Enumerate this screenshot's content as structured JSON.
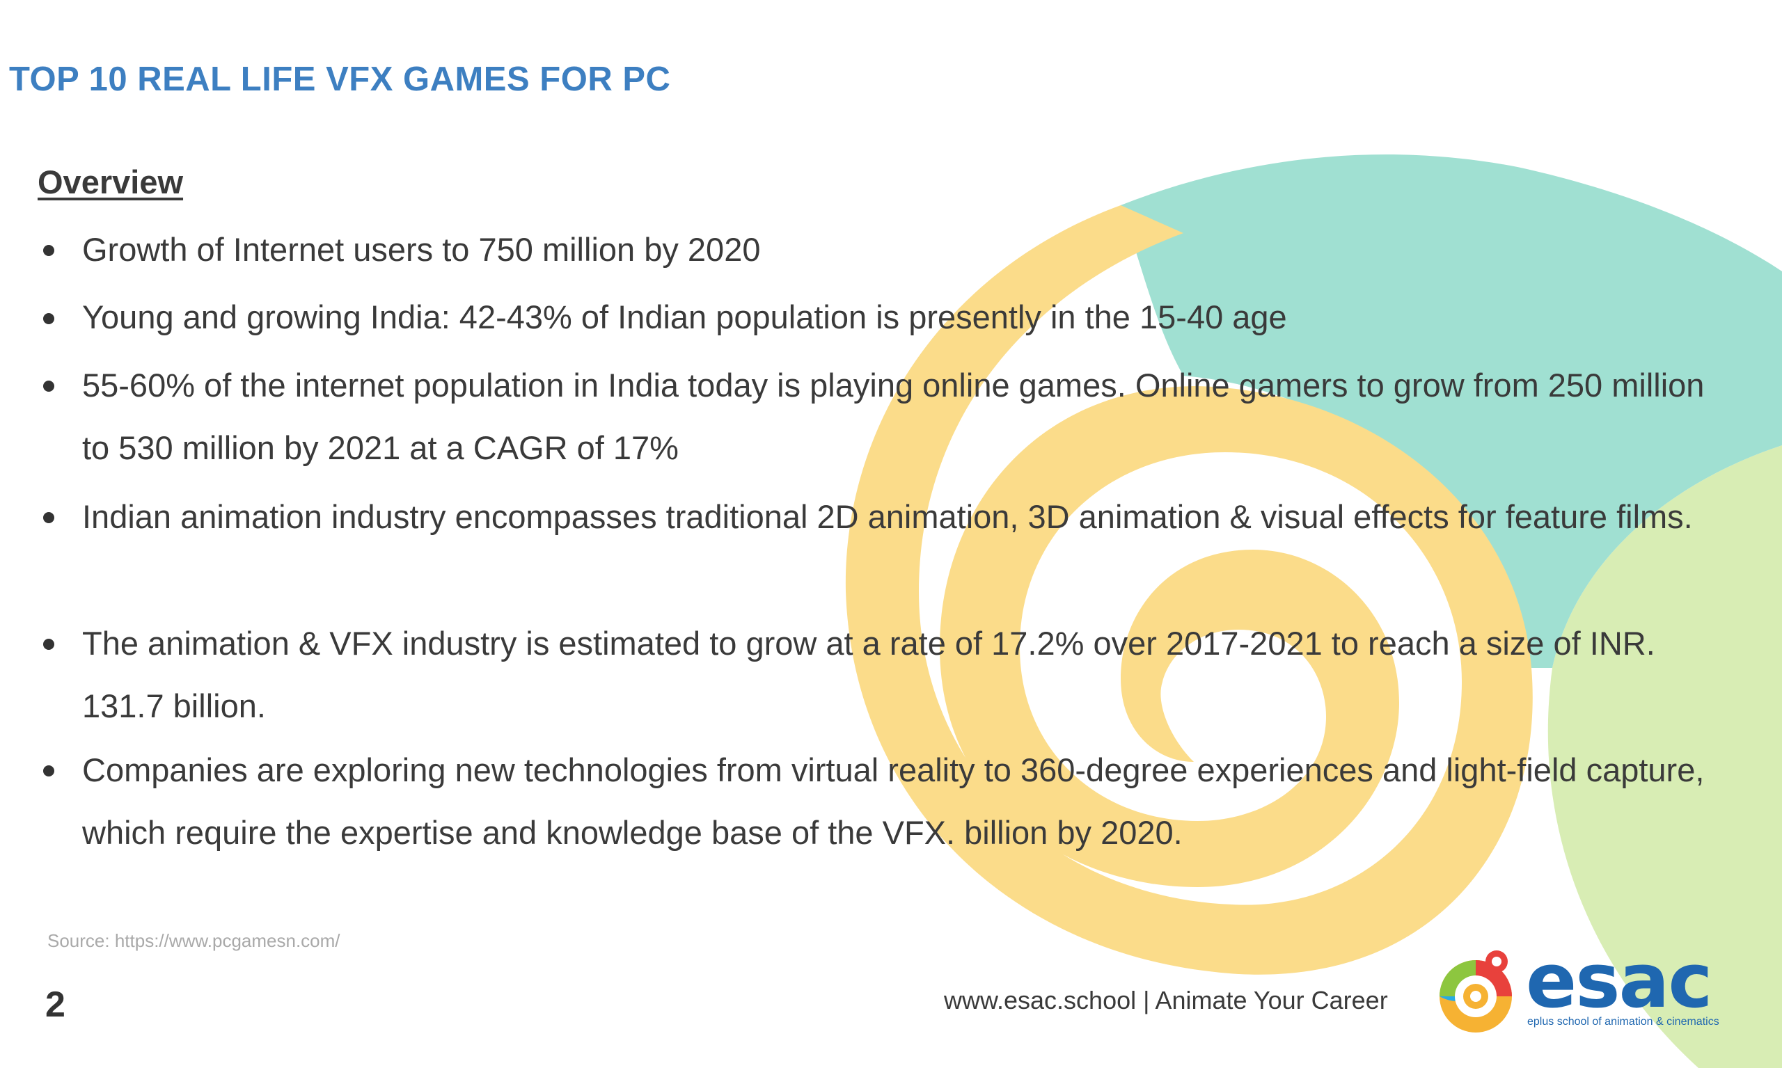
{
  "slide": {
    "title": "TOP 10 REAL LIFE VFX GAMES FOR PC",
    "section_heading": "Overview",
    "bullets": [
      "Growth of Internet users to 750 million by 2020",
      "Young and growing India: 42-43% of Indian population is presently in the 15-40 age",
      "55-60% of the internet population in India today is playing online games. Online gamers to grow from 250 million to 530 million by 2021 at a CAGR of 17%",
      "Indian animation industry encompasses traditional 2D animation, 3D animation & visual effects for feature films.",
      "The animation & VFX industry is estimated to grow at a rate of 17.2% over 2017-2021 to reach a size of INR. 131.7 billion.",
      "Companies are exploring new technologies from virtual reality to 360-degree experiences and light-field capture, which require the expertise and knowledge base of the VFX. billion by 2020."
    ],
    "source": "Source: https://www.pcgamesn.com/",
    "page_number": "2",
    "footer": "www.esac.school | Animate Your Career"
  },
  "logo": {
    "wordmark": "esac",
    "tagline": "eplus school of animation & cinematics",
    "icon": "chameleon-swirl-icon"
  },
  "colors": {
    "title": "#3d7fc1",
    "swirl_yellow": "#fbdc8a",
    "swirl_teal": "#9edfd0",
    "swirl_green": "#d3eaae",
    "brand_blue": "#1f67b0"
  }
}
